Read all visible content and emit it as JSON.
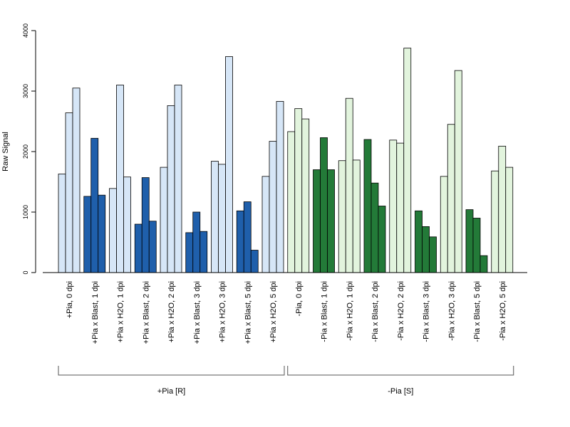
{
  "chart_data": {
    "type": "bar",
    "title": "",
    "xlabel": "",
    "ylabel": "Raw Signal",
    "ylim": [
      0,
      4000
    ],
    "yticks": [
      0,
      1000,
      2000,
      3000,
      4000
    ],
    "grid": false,
    "bars_per_group": 3,
    "categories": [
      "+Pia, 0 dpi",
      "+Pia x Blast, 1 dpi",
      "+Pia x H2O, 1 dpi",
      "+Pia x Blast, 2 dpi",
      "+Pia x H2O, 2 dpi",
      "+Pia x Blast, 3 dpi",
      "+Pia x H2O, 3 dpi",
      "+Pia x Blast, 5 dpi",
      "+Pia x H2O, 5 dpi",
      "-Pia, 0 dpi",
      "-Pia x Blast, 1 dpi",
      "-Pia x H2O, 1 dpi",
      "-Pia x Blast, 2 dpi",
      "-Pia x H2O, 2 dpi",
      "-Pia x Blast, 3 dpi",
      "-Pia x H2O, 3 dpi",
      "-Pia x Blast, 5 dpi",
      "-Pia x H2O, 5 dpi"
    ],
    "values": [
      [
        1630,
        2640,
        3050
      ],
      [
        1260,
        2220,
        1280
      ],
      [
        1390,
        3100,
        1580
      ],
      [
        800,
        1570,
        850
      ],
      [
        1740,
        2760,
        3100
      ],
      [
        660,
        1000,
        680
      ],
      [
        1840,
        1790,
        3570
      ],
      [
        1020,
        1170,
        370
      ],
      [
        1590,
        2170,
        2830
      ],
      [
        2330,
        2710,
        2540
      ],
      [
        1700,
        2230,
        1700
      ],
      [
        1850,
        2880,
        1860
      ],
      [
        2200,
        1480,
        1100
      ],
      [
        2190,
        2140,
        3710
      ],
      [
        1020,
        760,
        590
      ],
      [
        1590,
        2450,
        3340
      ],
      [
        1040,
        900,
        280
      ],
      [
        1680,
        2090,
        1740
      ]
    ],
    "bar_colors": [
      "#d6e6f7",
      "#1f5fab",
      "#d6e6f7",
      "#1f5fab",
      "#d6e6f7",
      "#1f5fab",
      "#d6e6f7",
      "#1f5fab",
      "#d6e6f7",
      "#e2f4dd",
      "#237a38",
      "#e2f4dd",
      "#237a38",
      "#e2f4dd",
      "#237a38",
      "#e2f4dd",
      "#237a38",
      "#e2f4dd"
    ],
    "groups": [
      {
        "label": "+Pia [R]",
        "from": 0,
        "to": 8
      },
      {
        "label": "-Pia [S]",
        "from": 9,
        "to": 17
      }
    ]
  }
}
